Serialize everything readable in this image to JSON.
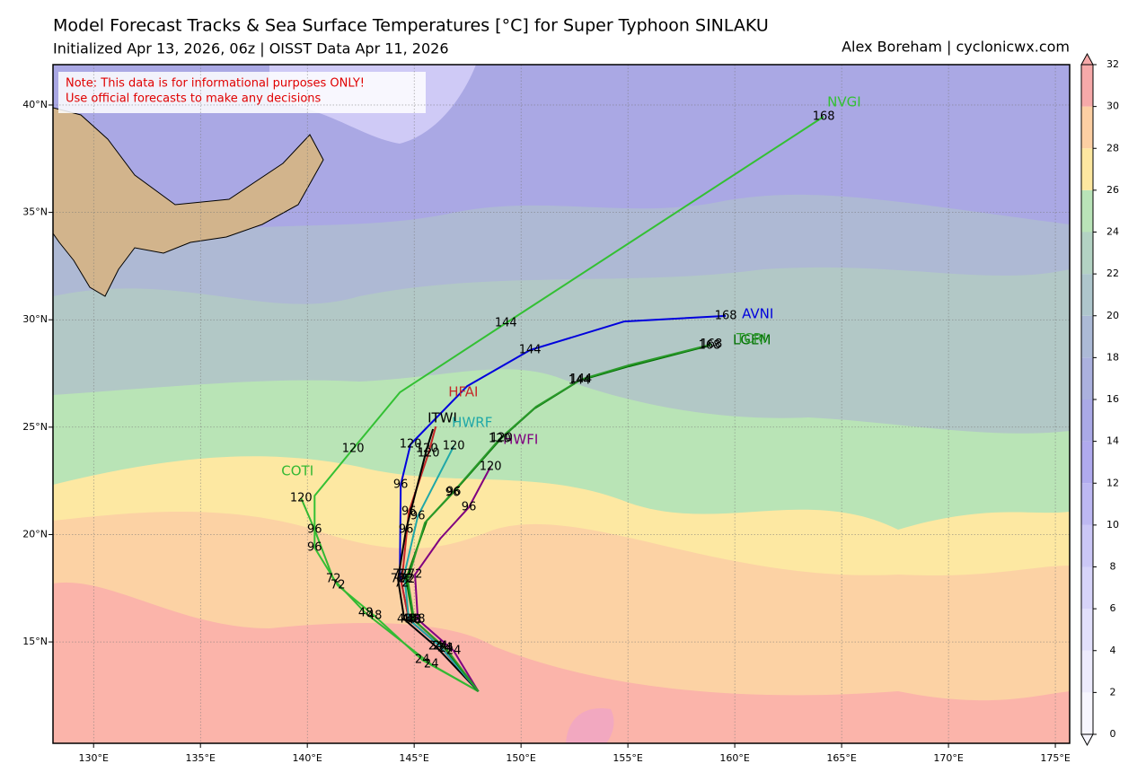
{
  "header": {
    "title": "Model Forecast Tracks & Sea Surface Temperatures [°C] for Super Typhoon SINLAKU",
    "subtitle": "Initialized Apr 13, 2026, 06z | OISST Data Apr 11, 2026",
    "credit": "Alex Boreham | cyclonicwx.com"
  },
  "note": [
    "Note: This data is for informational purposes ONLY!",
    "Use official forecasts to make any decisions"
  ],
  "map": {
    "xlim": [
      128.1,
      175.67
    ],
    "ylim": [
      10.28,
      41.88
    ],
    "xticks": [
      {
        "value": 130,
        "label": "130°E"
      },
      {
        "value": 135,
        "label": "135°E"
      },
      {
        "value": 140,
        "label": "140°E"
      },
      {
        "value": 145,
        "label": "145°E"
      },
      {
        "value": 150,
        "label": "150°E"
      },
      {
        "value": 155,
        "label": "155°E"
      },
      {
        "value": 160,
        "label": "160°E"
      },
      {
        "value": 165,
        "label": "165°E"
      },
      {
        "value": 170,
        "label": "170°E"
      },
      {
        "value": 175,
        "label": "175°E"
      }
    ],
    "yticks": [
      {
        "value": 15,
        "label": "15°N"
      },
      {
        "value": 20,
        "label": "20°N"
      },
      {
        "value": 25,
        "label": "25°N"
      },
      {
        "value": 30,
        "label": "30°N"
      },
      {
        "value": 35,
        "label": "35°N"
      },
      {
        "value": 40,
        "label": "40°N"
      }
    ],
    "tracks": [
      {
        "name": "NVGI",
        "color": "#33c033",
        "points": [
          [
            148.0,
            12.7
          ],
          [
            145.38,
            14.16
          ],
          [
            143.15,
            16.21
          ],
          [
            141.43,
            17.63
          ],
          [
            140.34,
            19.39
          ],
          [
            140.34,
            21.81
          ],
          [
            142.14,
            23.99
          ],
          [
            144.33,
            26.62
          ],
          [
            149.29,
            29.84
          ],
          [
            164.16,
            39.46
          ]
        ],
        "hours": [
          null,
          24,
          48,
          72,
          96,
          null,
          120,
          null,
          144,
          168
        ]
      },
      {
        "name": "COTI",
        "color": "#33b833",
        "points": [
          [
            148.0,
            12.7
          ],
          [
            145.8,
            13.95
          ],
          [
            142.73,
            16.34
          ],
          [
            141.22,
            17.93
          ],
          [
            140.34,
            20.23
          ],
          [
            139.71,
            21.69
          ]
        ],
        "hours": [
          null,
          24,
          48,
          72,
          96,
          120
        ]
      },
      {
        "name": "AVNI",
        "color": "#0000dd",
        "points": [
          [
            148.0,
            12.7
          ],
          [
            146.22,
            14.79
          ],
          [
            144.75,
            16.05
          ],
          [
            144.33,
            18.14
          ],
          [
            144.37,
            22.32
          ],
          [
            144.83,
            24.2
          ],
          [
            147.48,
            26.91
          ],
          [
            150.42,
            28.59
          ],
          [
            154.83,
            29.92
          ],
          [
            159.58,
            30.18
          ]
        ],
        "hours": [
          null,
          24,
          48,
          72,
          96,
          120,
          null,
          144,
          null,
          168
        ]
      },
      {
        "name": "HFAI",
        "color": "#c62828",
        "points": [
          [
            148.0,
            12.7
          ],
          [
            146.22,
            14.79
          ],
          [
            144.75,
            16.05
          ],
          [
            144.41,
            17.72
          ],
          [
            144.75,
            21.06
          ],
          [
            145.67,
            23.78
          ],
          [
            146.01,
            25.03
          ]
        ],
        "hours": [
          null,
          24,
          48,
          72,
          96,
          120,
          null
        ]
      },
      {
        "name": "ITWI",
        "color": "#000000",
        "points": [
          [
            148.0,
            12.7
          ],
          [
            146.01,
            14.79
          ],
          [
            144.54,
            16.05
          ],
          [
            144.24,
            17.93
          ],
          [
            144.62,
            20.23
          ],
          [
            145.59,
            23.99
          ],
          [
            145.88,
            24.91
          ]
        ],
        "hours": [
          null,
          24,
          48,
          72,
          96,
          120,
          null
        ]
      },
      {
        "name": "HWRF",
        "color": "#20a8a8",
        "points": [
          [
            148.0,
            12.7
          ],
          [
            146.22,
            14.79
          ],
          [
            144.75,
            16.05
          ],
          [
            144.54,
            18.14
          ],
          [
            145.17,
            20.85
          ],
          [
            146.85,
            24.11
          ]
        ],
        "hours": [
          null,
          24,
          48,
          72,
          96,
          120
        ]
      },
      {
        "name": "HWFI",
        "color": "#800080",
        "points": [
          [
            148.0,
            12.7
          ],
          [
            146.85,
            14.58
          ],
          [
            145.17,
            16.05
          ],
          [
            145.04,
            18.14
          ],
          [
            146.22,
            19.81
          ],
          [
            147.56,
            21.27
          ],
          [
            148.57,
            23.15
          ]
        ],
        "hours": [
          null,
          24,
          48,
          72,
          null,
          96,
          120
        ]
      },
      {
        "name": "LGEM",
        "color": "#007000",
        "points": [
          [
            148.0,
            12.7
          ],
          [
            146.43,
            14.71
          ],
          [
            144.96,
            16.05
          ],
          [
            144.62,
            17.93
          ],
          [
            145.59,
            20.64
          ],
          [
            146.85,
            21.98
          ],
          [
            149.08,
            24.49
          ],
          [
            150.63,
            25.87
          ],
          [
            152.73,
            27.17
          ],
          [
            155.04,
            27.83
          ],
          [
            158.82,
            28.8
          ]
        ],
        "hours": [
          null,
          24,
          48,
          72,
          null,
          96,
          120,
          null,
          144,
          null,
          168
        ]
      },
      {
        "name": "TCRI",
        "color": "#2a9a2a",
        "points": [
          [
            148.0,
            12.7
          ],
          [
            146.5,
            14.68
          ],
          [
            145.0,
            16.0
          ],
          [
            144.7,
            17.9
          ],
          [
            145.5,
            20.55
          ],
          [
            146.8,
            21.95
          ],
          [
            149.0,
            24.45
          ],
          [
            150.7,
            25.95
          ],
          [
            152.8,
            27.22
          ],
          [
            155.1,
            27.9
          ],
          [
            158.9,
            28.85
          ]
        ],
        "hours": [
          null,
          24,
          48,
          72,
          null,
          96,
          120,
          null,
          144,
          null,
          168
        ]
      }
    ]
  },
  "colorbar": {
    "ticks": [
      0,
      2,
      4,
      6,
      8,
      10,
      12,
      14,
      16,
      18,
      20,
      22,
      24,
      26,
      28,
      30,
      32
    ],
    "colors": [
      "#f7f6fe",
      "#edebfc",
      "#e2e0fb",
      "#d7d4f9",
      "#cbc7f6",
      "#bdb8f2",
      "#b0aaee",
      "#aaa9e6",
      "#abb1de",
      "#acbad6",
      "#aec6cc",
      "#b3d2c3",
      "#b9e3b8",
      "#fde7a0",
      "#fccfa3",
      "#f6a9a9"
    ]
  }
}
